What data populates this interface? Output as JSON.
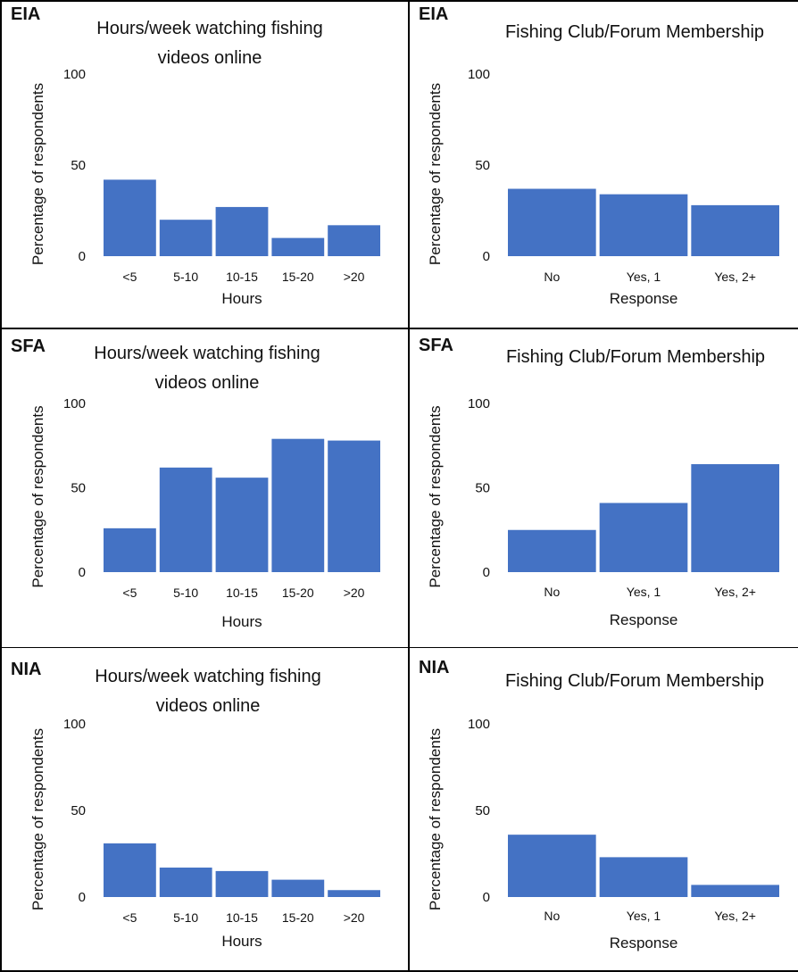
{
  "colors": {
    "bar": "#4472C4",
    "text": "#111111",
    "border": "#000000"
  },
  "chart_data": [
    {
      "type": "bar",
      "region": "EIA",
      "title_lines": [
        "Hours/week watching fishing",
        "videos online"
      ],
      "xlabel": "Hours",
      "ylabel": "Percentage of respondents",
      "ylim": [
        0,
        100
      ],
      "yticks": [
        0,
        50,
        100
      ],
      "categories": [
        "<5",
        "5-10",
        "10-15",
        "15-20",
        ">20"
      ],
      "values": [
        42,
        20,
        27,
        10,
        17
      ]
    },
    {
      "type": "bar",
      "region": "EIA",
      "title_lines": [
        "Fishing Club/Forum Membership"
      ],
      "xlabel": "Response",
      "ylabel": "Percentage of respondents",
      "ylim": [
        0,
        100
      ],
      "yticks": [
        0,
        50,
        100
      ],
      "categories": [
        "No",
        "Yes, 1",
        "Yes, 2+"
      ],
      "values": [
        37,
        34,
        28
      ]
    },
    {
      "type": "bar",
      "region": "SFA",
      "title_lines": [
        "Hours/week watching fishing",
        "videos online"
      ],
      "xlabel": "Hours",
      "ylabel": "Percentage of respondents",
      "ylim": [
        0,
        100
      ],
      "yticks": [
        0,
        50,
        100
      ],
      "categories": [
        "<5",
        "5-10",
        "10-15",
        "15-20",
        ">20"
      ],
      "values": [
        26,
        62,
        56,
        79,
        78
      ]
    },
    {
      "type": "bar",
      "region": "SFA",
      "title_lines": [
        "Fishing Club/Forum Membership"
      ],
      "xlabel": "Response",
      "ylabel": "Percentage of respondents",
      "ylim": [
        0,
        100
      ],
      "yticks": [
        0,
        50,
        100
      ],
      "categories": [
        "No",
        "Yes, 1",
        "Yes, 2+"
      ],
      "values": [
        25,
        41,
        64
      ]
    },
    {
      "type": "bar",
      "region": "NIA",
      "title_lines": [
        "Hours/week watching fishing",
        "videos online"
      ],
      "xlabel": "Hours",
      "ylabel": "Percentage of respondents",
      "ylim": [
        0,
        100
      ],
      "yticks": [
        0,
        50,
        100
      ],
      "categories": [
        "<5",
        "5-10",
        "10-15",
        "15-20",
        ">20"
      ],
      "values": [
        31,
        17,
        15,
        10,
        4
      ]
    },
    {
      "type": "bar",
      "region": "NIA",
      "title_lines": [
        "Fishing Club/Forum Membership"
      ],
      "xlabel": "Response",
      "ylabel": "Percentage of respondents",
      "ylim": [
        0,
        100
      ],
      "yticks": [
        0,
        50,
        100
      ],
      "categories": [
        "No",
        "Yes, 1",
        "Yes, 2+"
      ],
      "values": [
        36,
        23,
        7
      ]
    }
  ]
}
